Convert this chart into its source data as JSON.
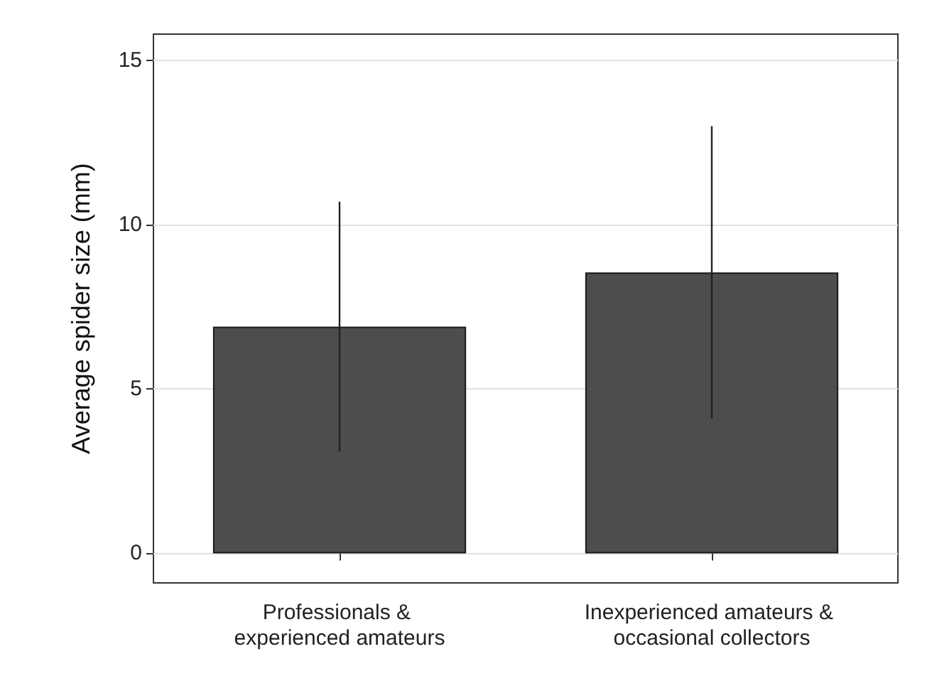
{
  "chart_data": {
    "type": "bar",
    "ylabel": "Average spider size (mm)",
    "categories": [
      "Professionals & experienced amateurs",
      "Inexperienced amateurs & occasional collectors"
    ],
    "values": [
      6.9,
      8.55
    ],
    "errors": [
      3.8,
      4.45
    ],
    "color": "#4d4d4d",
    "ylim": [
      -0.9,
      15.8
    ],
    "yticks": [
      0,
      5,
      10,
      15
    ],
    "grid": "y"
  }
}
